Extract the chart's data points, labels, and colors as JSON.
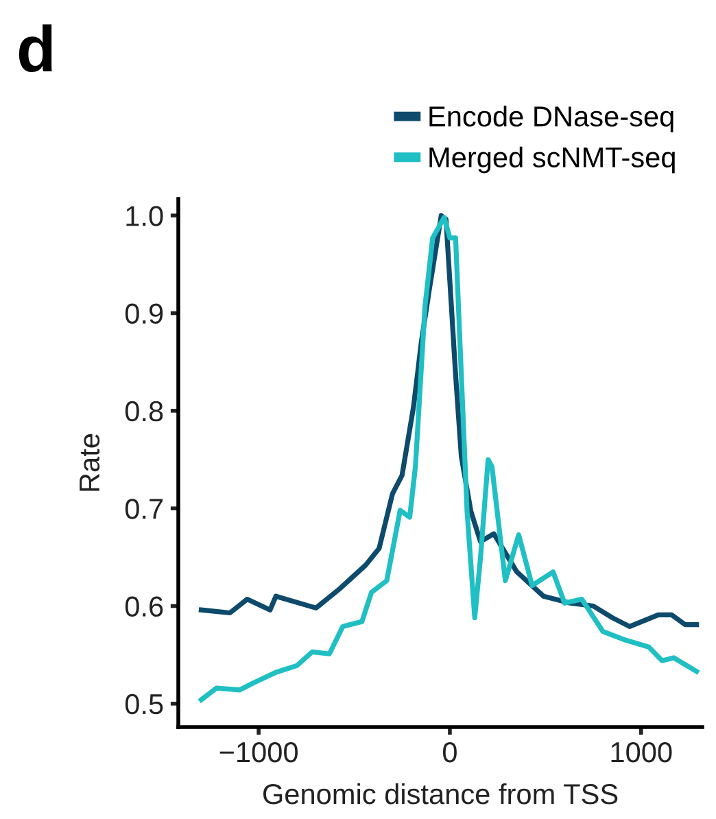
{
  "chart_data": {
    "type": "line",
    "title": "d",
    "xlabel": "Genomic distance from TSS",
    "ylabel": "Rate",
    "xlim": [
      -1420,
      1320
    ],
    "ylim": [
      0.476,
      1.017
    ],
    "xticks": [
      {
        "value": -1000,
        "label": "−1000"
      },
      0,
      1000
    ],
    "yticks": [
      {
        "value": 0.5,
        "label": "0.5"
      },
      {
        "value": 0.6,
        "label": "0.6"
      },
      {
        "value": 0.7,
        "label": "0.7"
      },
      {
        "value": 0.8,
        "label": "0.8"
      },
      {
        "value": 0.9,
        "label": "0.9"
      },
      {
        "value": 1.0,
        "label": "1.0"
      }
    ],
    "grid": false,
    "legend": "top right",
    "marker": "none",
    "line_style": "solid",
    "series": [
      {
        "name": "Encode DNase-seq",
        "color": "#0e4a6b",
        "x": [
          -1300,
          -1150,
          -1060,
          -940,
          -910,
          -700,
          -580,
          -440,
          -370,
          -300,
          -250,
          -190,
          -150,
          -110,
          -45,
          -20,
          30,
          60,
          110,
          160,
          230,
          350,
          490,
          630,
          750,
          850,
          940,
          1090,
          1160,
          1230,
          1290
        ],
        "values": [
          0.596,
          0.593,
          0.607,
          0.596,
          0.61,
          0.598,
          0.617,
          0.642,
          0.659,
          0.715,
          0.734,
          0.804,
          0.869,
          0.921,
          1.0,
          0.996,
          0.837,
          0.753,
          0.697,
          0.666,
          0.674,
          0.635,
          0.61,
          0.603,
          0.6,
          0.588,
          0.579,
          0.591,
          0.591,
          0.581,
          0.581
        ]
      },
      {
        "name": "Merged scNMT-seq",
        "color": "#20bfc4",
        "x": [
          -1300,
          -1220,
          -1100,
          -1030,
          -910,
          -800,
          -720,
          -630,
          -560,
          -460,
          -410,
          -330,
          -260,
          -210,
          -180,
          -130,
          -90,
          -30,
          0,
          30,
          50,
          90,
          130,
          160,
          200,
          220,
          290,
          360,
          430,
          540,
          600,
          690,
          800,
          920,
          1040,
          1110,
          1170,
          1290
        ],
        "values": [
          0.504,
          0.516,
          0.514,
          0.521,
          0.532,
          0.539,
          0.553,
          0.551,
          0.579,
          0.584,
          0.614,
          0.626,
          0.698,
          0.691,
          0.743,
          0.907,
          0.977,
          0.998,
          0.977,
          0.977,
          0.883,
          0.697,
          0.588,
          0.649,
          0.75,
          0.743,
          0.626,
          0.673,
          0.621,
          0.635,
          0.603,
          0.607,
          0.574,
          0.565,
          0.558,
          0.544,
          0.547,
          0.533
        ]
      }
    ]
  }
}
